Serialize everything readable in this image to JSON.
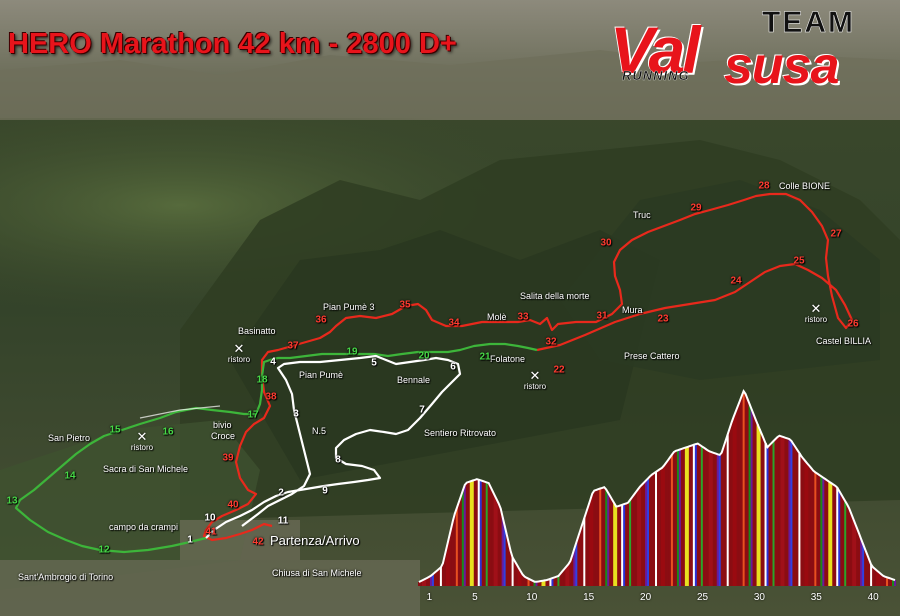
{
  "title": "HERO Marathon 42 km - 2800 D+",
  "logo": {
    "team": "TEAM",
    "val": "Val",
    "susa": "susa",
    "running": "RUNNING"
  },
  "colors": {
    "red_route": "#e8291c",
    "green_route": "#3db53a",
    "white_route": "#ffffff",
    "title": "#e8141b"
  },
  "places": [
    {
      "id": "colle-bione",
      "label": "Colle BIONE"
    },
    {
      "id": "truc",
      "label": "Truc"
    },
    {
      "id": "pian-pume-3",
      "label": "Pian Pumè 3"
    },
    {
      "id": "salita-della-morte",
      "label": "Salita della morte"
    },
    {
      "id": "basinatto",
      "label": "Basinatto"
    },
    {
      "id": "mole",
      "label": "Molè"
    },
    {
      "id": "mura",
      "label": "Mura"
    },
    {
      "id": "folatone",
      "label": "Folatone"
    },
    {
      "id": "castel-billia",
      "label": "Castel BILLIA"
    },
    {
      "id": "prese-cattero",
      "label": "Prese Cattero"
    },
    {
      "id": "pian-pume",
      "label": "Pian Pumè"
    },
    {
      "id": "bennale",
      "label": "Bennale"
    },
    {
      "id": "n5",
      "label": "N.5"
    },
    {
      "id": "sentiero-ritrovato",
      "label": "Sentiero Ritrovato"
    },
    {
      "id": "san-pietro",
      "label": "San Pietro"
    },
    {
      "id": "bivio-croce-1",
      "label": "bivio"
    },
    {
      "id": "bivio-croce-2",
      "label": "Croce"
    },
    {
      "id": "sacra",
      "label": "Sacra di San Michele"
    },
    {
      "id": "campo-da-crampi",
      "label": "campo da crampi"
    },
    {
      "id": "partenza",
      "label": "Partenza/Arrivo"
    },
    {
      "id": "sant-ambrogio",
      "label": "Sant'Ambrogio di Torino"
    },
    {
      "id": "chiusa",
      "label": "Chiusa di San Michele"
    }
  ],
  "ristoro_label": "ristoro",
  "ristoro_icon": "crossed-cutlery-icon",
  "km_markers": [
    {
      "n": "1",
      "color": "white"
    },
    {
      "n": "2",
      "color": "white"
    },
    {
      "n": "3",
      "color": "white"
    },
    {
      "n": "4",
      "color": "white"
    },
    {
      "n": "5",
      "color": "white"
    },
    {
      "n": "6",
      "color": "white"
    },
    {
      "n": "7",
      "color": "white"
    },
    {
      "n": "8",
      "color": "white"
    },
    {
      "n": "9",
      "color": "white"
    },
    {
      "n": "10",
      "color": "white"
    },
    {
      "n": "11",
      "color": "white"
    },
    {
      "n": "12",
      "color": "green"
    },
    {
      "n": "13",
      "color": "green"
    },
    {
      "n": "14",
      "color": "green"
    },
    {
      "n": "15",
      "color": "green"
    },
    {
      "n": "16",
      "color": "green"
    },
    {
      "n": "17",
      "color": "green"
    },
    {
      "n": "18",
      "color": "green"
    },
    {
      "n": "19",
      "color": "green"
    },
    {
      "n": "20",
      "color": "green"
    },
    {
      "n": "21",
      "color": "green"
    },
    {
      "n": "22",
      "color": "red"
    },
    {
      "n": "23",
      "color": "red"
    },
    {
      "n": "24",
      "color": "red"
    },
    {
      "n": "25",
      "color": "red"
    },
    {
      "n": "26",
      "color": "red"
    },
    {
      "n": "27",
      "color": "red"
    },
    {
      "n": "28",
      "color": "red"
    },
    {
      "n": "29",
      "color": "red"
    },
    {
      "n": "30",
      "color": "red"
    },
    {
      "n": "31",
      "color": "red"
    },
    {
      "n": "32",
      "color": "red"
    },
    {
      "n": "33",
      "color": "red"
    },
    {
      "n": "34",
      "color": "red"
    },
    {
      "n": "35",
      "color": "red"
    },
    {
      "n": "36",
      "color": "red"
    },
    {
      "n": "37",
      "color": "red"
    },
    {
      "n": "38",
      "color": "red"
    },
    {
      "n": "39",
      "color": "red"
    },
    {
      "n": "40",
      "color": "red"
    },
    {
      "n": "41",
      "color": "red"
    },
    {
      "n": "42",
      "color": "red"
    }
  ],
  "elevation_profile": {
    "x_ticks": [
      "1",
      "5",
      "10",
      "15",
      "20",
      "25",
      "30",
      "35",
      "40"
    ],
    "x_range": [
      0,
      42
    ],
    "relative_elevation": [
      0.02,
      0.05,
      0.1,
      0.35,
      0.52,
      0.54,
      0.52,
      0.4,
      0.15,
      0.05,
      0.02,
      0.03,
      0.05,
      0.12,
      0.3,
      0.48,
      0.5,
      0.4,
      0.42,
      0.5,
      0.56,
      0.6,
      0.68,
      0.7,
      0.72,
      0.68,
      0.66,
      0.84,
      0.99,
      0.84,
      0.7,
      0.76,
      0.74,
      0.65,
      0.58,
      0.54,
      0.5,
      0.4,
      0.25,
      0.1,
      0.05,
      0.03
    ]
  }
}
